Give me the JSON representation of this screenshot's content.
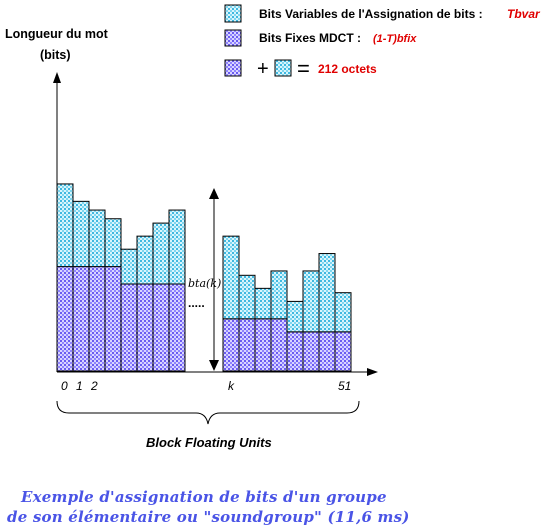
{
  "axis": {
    "ylabel_line1": "Longueur du mot",
    "ylabel_line2": "(bits)",
    "xticks": [
      "0",
      "1",
      "2",
      "k",
      "51"
    ],
    "xlabel": "Block Floating Units"
  },
  "legend": {
    "variable_label": "Bits Variables de l'Assignation de bits :",
    "variable_formula": "Tbvar",
    "fixed_label": "Bits Fixes MDCT :",
    "fixed_formula": "(1-T)bfix",
    "plus": "+",
    "equals": "=",
    "total": "212 octets"
  },
  "annotation": {
    "bta_label": "bta(k)",
    "dots": "....."
  },
  "caption": {
    "line1": "Exemple d'assignation de bits d'un groupe",
    "line2": "de son élémentaire ou \"soundgroup\" (11,6 ms)"
  },
  "colors": {
    "variable_fill": "#5fd0ea",
    "fixed_fill": "#7a6bff",
    "caption": "#4a54e6",
    "formula": "#e00000"
  },
  "chart_data": {
    "type": "bar",
    "stacked": true,
    "groups": [
      {
        "name": "left",
        "categories": [
          "0",
          "1",
          "2",
          "",
          "",
          "",
          "",
          ""
        ],
        "fixed": [
          12,
          12,
          12,
          12,
          10,
          10,
          10,
          10
        ],
        "variable": [
          9.5,
          7.5,
          6.5,
          5.5,
          4,
          5.5,
          7,
          8.5
        ]
      },
      {
        "name": "right",
        "categories": [
          "k",
          "",
          "",
          "",
          "",
          "",
          "",
          "51"
        ],
        "fixed": [
          6,
          6,
          6,
          6,
          4.5,
          4.5,
          4.5,
          4.5
        ],
        "variable": [
          9.5,
          5,
          3.5,
          5.5,
          3.5,
          7,
          9,
          4.5
        ]
      }
    ],
    "series": [
      {
        "name": "Bits Variables de l'Assignation de bits : Tbvar"
      },
      {
        "name": "Bits Fixes MDCT : (1-T)bfix"
      }
    ],
    "xlabel": "Block Floating Units",
    "ylabel": "Longueur du mot (bits)"
  }
}
